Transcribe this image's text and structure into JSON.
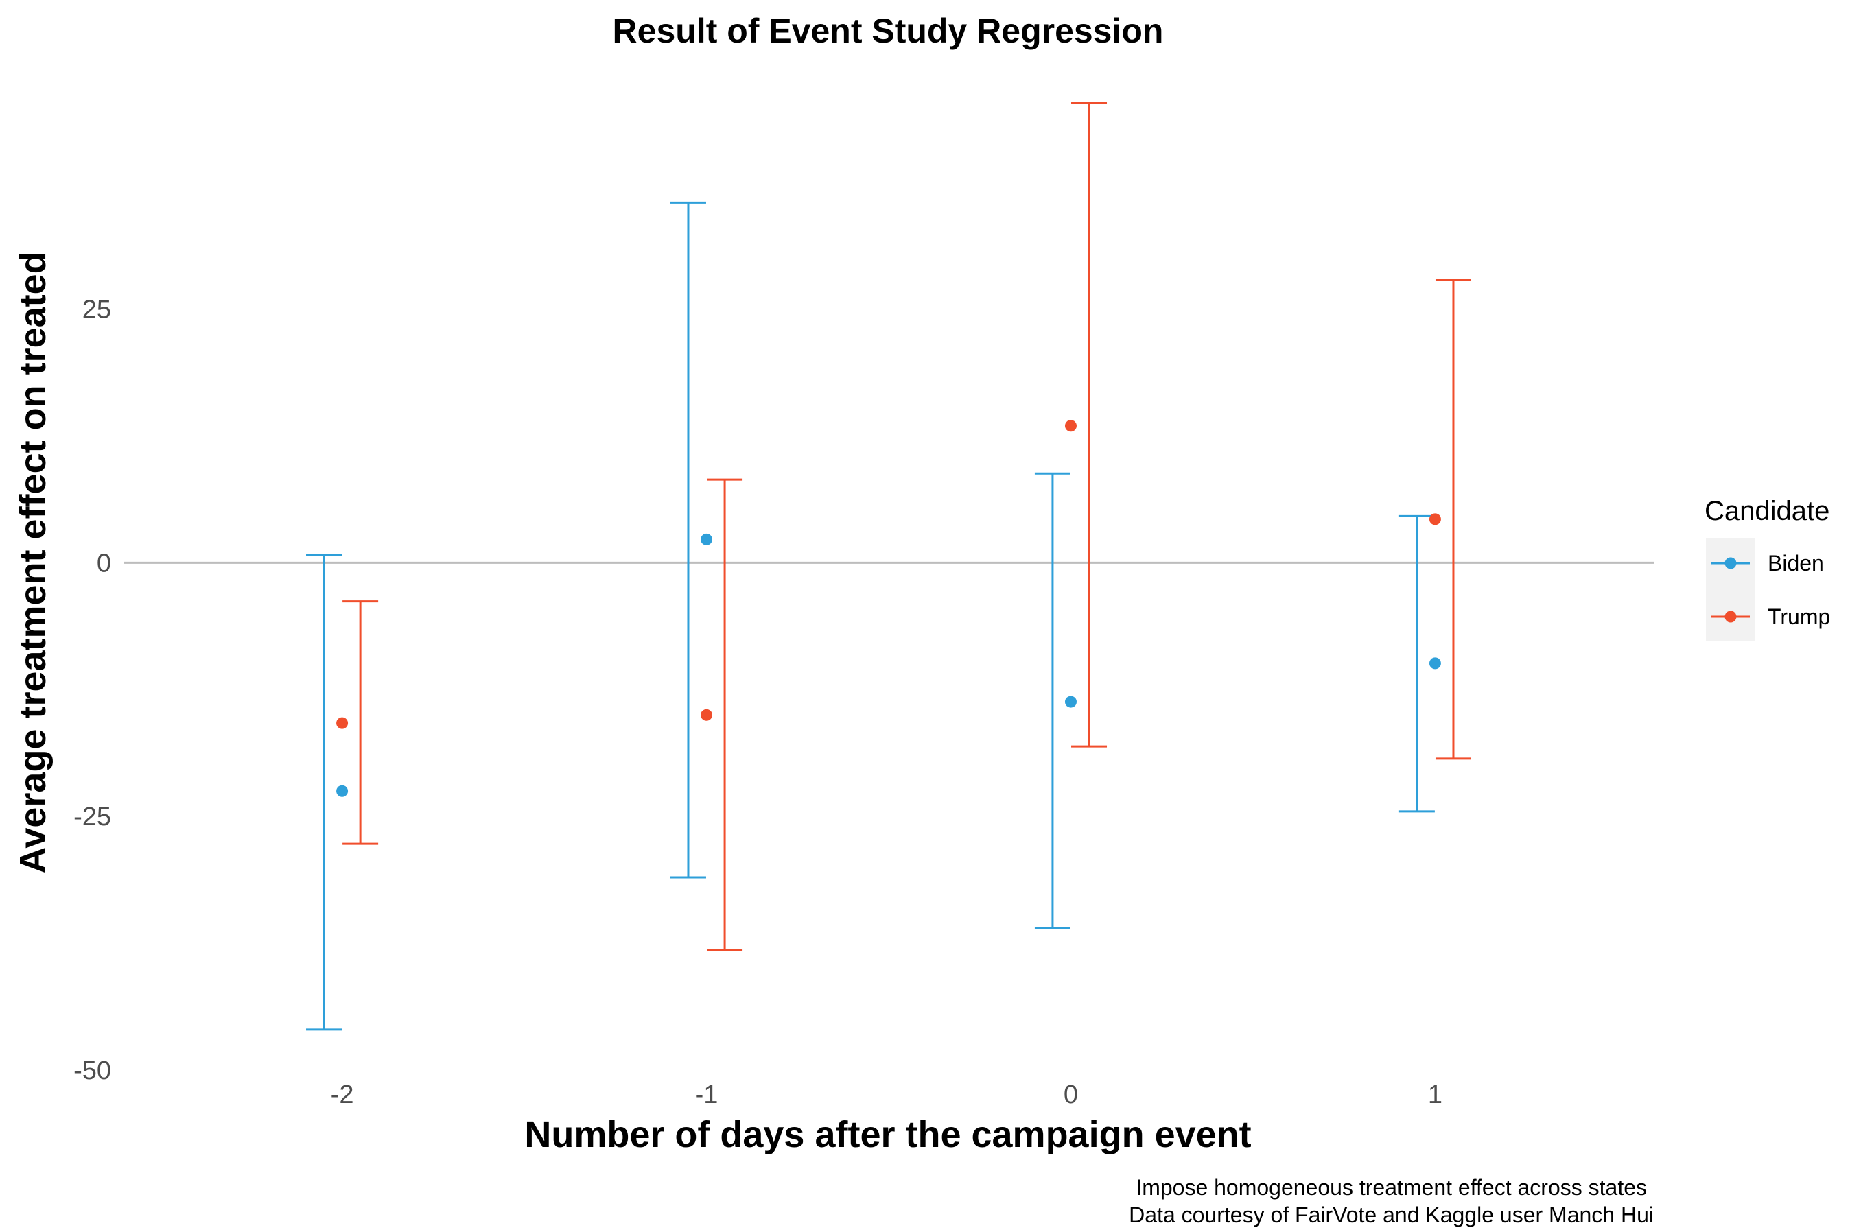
{
  "chart_data": {
    "type": "scatter",
    "title": "Result of Event Study Regression",
    "xlabel": "Number of days after the campaign event",
    "ylabel": "Average treatment effect on treated",
    "x_ticks": [
      "-2",
      "-1",
      "0",
      "1"
    ],
    "y_ticks": [
      "-50",
      "-25",
      "0",
      "25"
    ],
    "xlim": [
      -2.6,
      1.6
    ],
    "ylim": [
      -50,
      46
    ],
    "reference_line_y": 0,
    "grid": false,
    "legend_title": "Candidate",
    "legend_position": "right",
    "series": [
      {
        "name": "Biden",
        "color": "#2e9fd9",
        "points": [
          {
            "x": -2,
            "y": -22.5,
            "lower": -46,
            "upper": 0.8
          },
          {
            "x": -1,
            "y": 2.3,
            "lower": -31,
            "upper": 35.5
          },
          {
            "x": 0,
            "y": -13.7,
            "lower": -36,
            "upper": 8.8
          },
          {
            "x": 1,
            "y": -9.9,
            "lower": -24.5,
            "upper": 4.6
          }
        ]
      },
      {
        "name": "Trump",
        "color": "#f04e2c",
        "points": [
          {
            "x": -2,
            "y": -15.8,
            "lower": -27.7,
            "upper": -3.8
          },
          {
            "x": -1,
            "y": -15,
            "lower": -38.2,
            "upper": 8.2
          },
          {
            "x": 0,
            "y": 13.5,
            "lower": -18.1,
            "upper": 45.3
          },
          {
            "x": 1,
            "y": 4.3,
            "lower": -19.3,
            "upper": 27.9
          }
        ]
      }
    ],
    "caption": [
      "Impose homogeneous treatment effect across states",
      "Data courtesy of FairVote and Kaggle user Manch Hui"
    ]
  }
}
